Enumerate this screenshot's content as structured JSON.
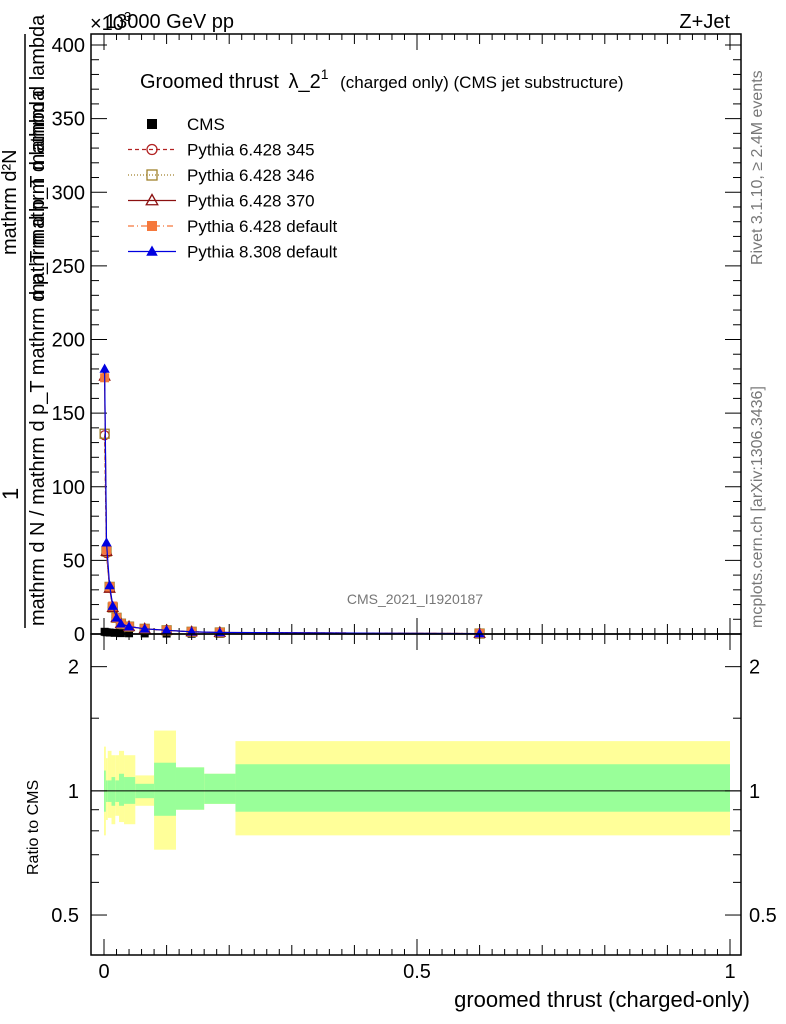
{
  "header": {
    "energy_label": "13000 GeV pp",
    "process_label": "Z+Jet",
    "exponent_label": "×10",
    "exponent_sup": "3"
  },
  "side": {
    "rivet_label": "Rivet 3.1.10, ≥ 2.4M events",
    "mcplots_label": "mcplots.cern.ch [arXiv:1306.3436]"
  },
  "chart_data": [
    {
      "type": "line",
      "title": "Groomed thrust λ_2¹ (charged only) (CMS jet substructure)",
      "title_main": "Groomed thrust",
      "title_lambda": "λ_2",
      "title_sup": "1",
      "title_extra": "(charged only) (CMS jet substructure)",
      "watermark": "CMS_2021_I1920187",
      "ylabel_parts": [
        "1",
        "mathrm d N / mathrm d p_T mathrm d p_T mathrm d lambda",
        "mathrm d²N"
      ],
      "ylabel_top": "mathrm d²N",
      "ylabel_mid": "mathrm d p_T mathrm d lambda",
      "ylabel_bottom": "mathrm d N / mathrm d p_T mathrm d p_T mathrm d lambda",
      "ylabel_one": "1",
      "xlim": [
        0,
        1
      ],
      "ylim": [
        0,
        400
      ],
      "y_scale_note": "×10³",
      "yticks": [
        0,
        50,
        100,
        150,
        200,
        250,
        300,
        350,
        400
      ],
      "ytick_labels": [
        "0",
        "50",
        "100",
        "150",
        "200",
        "250",
        "300",
        "350",
        "400"
      ],
      "legend_position": "top-left",
      "series": [
        {
          "name": "CMS",
          "color": "#000000",
          "marker": "square-filled",
          "dash": "",
          "x": [
            0.001,
            0.004,
            0.009,
            0.017,
            0.027,
            0.04,
            0.065,
            0.1,
            0.14,
            0.185,
            0.6
          ],
          "y": [
            1.5,
            1.2,
            1.0,
            0.8,
            0.6,
            0.5,
            0.4,
            0.3,
            0.2,
            0.1,
            0.02
          ]
        },
        {
          "name": "Pythia 6.428 345",
          "color": "#b22222",
          "marker": "circle-open",
          "dash": "4,3",
          "x": [
            0.001,
            0.004,
            0.009,
            0.014,
            0.02,
            0.027,
            0.04,
            0.065,
            0.1,
            0.14,
            0.185,
            0.6
          ],
          "y": [
            135,
            55,
            32,
            18,
            11,
            7,
            5,
            3.5,
            2.5,
            1.5,
            1,
            0.3
          ]
        },
        {
          "name": "Pythia 6.428 346",
          "color": "#a0822d",
          "marker": "square-open",
          "dash": "1,2",
          "x": [
            0.001,
            0.004,
            0.009,
            0.014,
            0.02,
            0.027,
            0.04,
            0.065,
            0.1,
            0.14,
            0.185,
            0.6
          ],
          "y": [
            136,
            56,
            32,
            18,
            11,
            7,
            5,
            3.5,
            2.5,
            1.5,
            1,
            0.3
          ]
        },
        {
          "name": "Pythia 6.428 370",
          "color": "#8b1010",
          "marker": "triangle-open",
          "dash": "",
          "x": [
            0.001,
            0.004,
            0.009,
            0.014,
            0.02,
            0.027,
            0.04,
            0.065,
            0.1,
            0.14,
            0.185,
            0.6
          ],
          "y": [
            175,
            56,
            31,
            18,
            11,
            7,
            5,
            3.5,
            2.5,
            1.5,
            1,
            0.3
          ]
        },
        {
          "name": "Pythia 6.428 default",
          "color": "#f5783c",
          "marker": "square-filled",
          "dash": "6,3,1,3",
          "x": [
            0.001,
            0.004,
            0.009,
            0.014,
            0.02,
            0.027,
            0.04,
            0.065,
            0.1,
            0.14,
            0.185,
            0.6
          ],
          "y": [
            174,
            57,
            32,
            19,
            11,
            7,
            5,
            3.5,
            2.5,
            1.5,
            1,
            0.3
          ]
        },
        {
          "name": "Pythia 8.308 default",
          "color": "#0000e0",
          "marker": "triangle-filled",
          "dash": "",
          "x": [
            0.001,
            0.004,
            0.009,
            0.014,
            0.02,
            0.027,
            0.04,
            0.065,
            0.1,
            0.14,
            0.185,
            0.6
          ],
          "y": [
            180,
            62,
            33,
            19,
            11,
            7,
            5,
            3.5,
            2.5,
            1.5,
            1,
            0.3
          ]
        }
      ]
    },
    {
      "type": "area",
      "ylabel": "Ratio to CMS",
      "xlabel": "groomed thrust (charged-only)",
      "xlim": [
        0,
        1
      ],
      "ylim": [
        0.4,
        2.4
      ],
      "y_scale": "log",
      "yticks": [
        0.5,
        1,
        2
      ],
      "ytick_labels": [
        "0.5",
        "1",
        "2"
      ],
      "xticks": [
        0,
        0.5,
        1
      ],
      "xtick_labels": [
        "0",
        "0.5",
        "1"
      ],
      "reference_line": 1,
      "bins": [
        {
          "x0": 0.0,
          "x1": 0.003,
          "yellow": [
            0.78,
            1.28
          ],
          "green": [
            0.89,
            1.12
          ]
        },
        {
          "x0": 0.003,
          "x1": 0.006,
          "yellow": [
            0.85,
            1.2
          ],
          "green": [
            0.94,
            1.06
          ]
        },
        {
          "x0": 0.006,
          "x1": 0.012,
          "yellow": [
            0.86,
            1.25
          ],
          "green": [
            0.94,
            1.06
          ]
        },
        {
          "x0": 0.012,
          "x1": 0.018,
          "yellow": [
            0.83,
            1.22
          ],
          "green": [
            0.92,
            1.08
          ]
        },
        {
          "x0": 0.018,
          "x1": 0.024,
          "yellow": [
            0.87,
            1.22
          ],
          "green": [
            0.94,
            1.06
          ]
        },
        {
          "x0": 0.024,
          "x1": 0.032,
          "yellow": [
            0.84,
            1.25
          ],
          "green": [
            0.92,
            1.1
          ]
        },
        {
          "x0": 0.032,
          "x1": 0.05,
          "yellow": [
            0.83,
            1.22
          ],
          "green": [
            0.93,
            1.08
          ]
        },
        {
          "x0": 0.05,
          "x1": 0.08,
          "yellow": [
            0.92,
            1.09
          ],
          "green": [
            0.96,
            1.04
          ]
        },
        {
          "x0": 0.08,
          "x1": 0.115,
          "yellow": [
            0.72,
            1.4
          ],
          "green": [
            0.87,
            1.17
          ]
        },
        {
          "x0": 0.115,
          "x1": 0.16,
          "yellow": [
            0.9,
            1.14
          ],
          "green": [
            0.9,
            1.14
          ]
        },
        {
          "x0": 0.16,
          "x1": 0.21,
          "yellow": [
            0.93,
            1.1
          ],
          "green": [
            0.93,
            1.1
          ]
        },
        {
          "x0": 0.21,
          "x1": 1.0,
          "yellow": [
            0.78,
            1.32
          ],
          "green": [
            0.89,
            1.16
          ]
        }
      ]
    }
  ],
  "colors": {
    "yellow_band": "#ffff99",
    "green_band": "#99ff99"
  }
}
